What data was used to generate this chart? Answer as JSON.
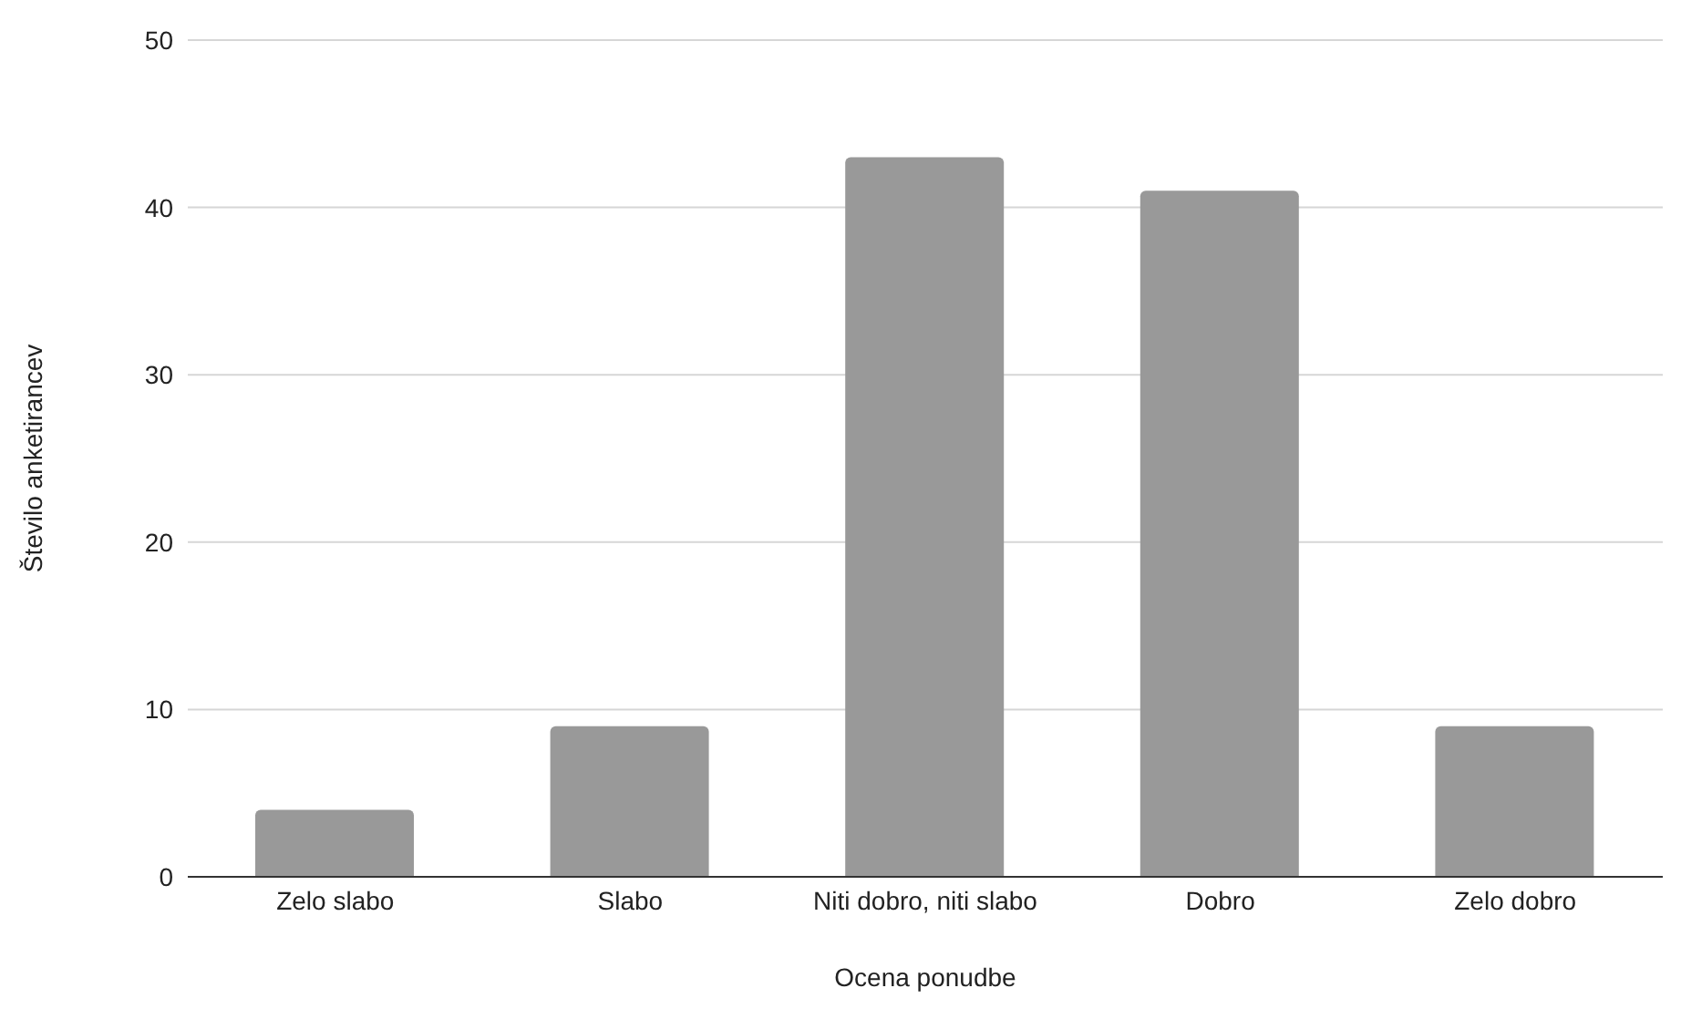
{
  "chart_data": {
    "type": "bar",
    "xlabel": "Ocena ponudbe",
    "ylabel": "Število anketirancev",
    "categories": [
      "Zelo slabo",
      "Slabo",
      "Niti dobro, niti slabo",
      "Dobro",
      "Zelo dobro"
    ],
    "values": [
      4,
      9,
      43,
      41,
      9
    ],
    "color": "#999999",
    "ylim": [
      0,
      50
    ],
    "yticks": [
      0,
      10,
      20,
      30,
      40,
      50
    ],
    "grid": "y",
    "legend": false
  }
}
